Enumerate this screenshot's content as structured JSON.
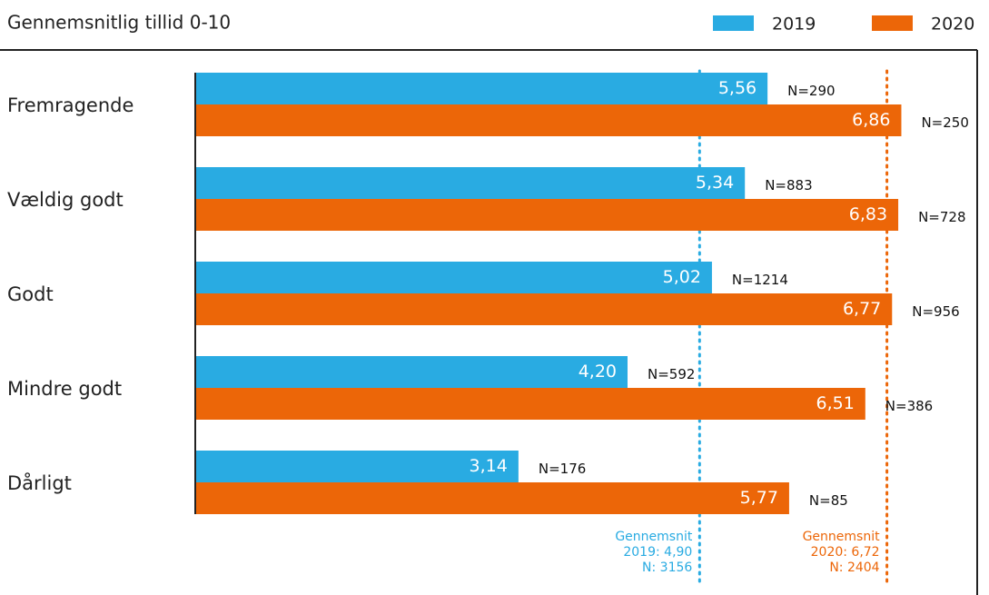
{
  "chart_data": {
    "type": "hbar",
    "title": "Gennemsnitlig tillid 0-10",
    "categories": [
      "Fremragende",
      "Vældig godt",
      "Godt",
      "Mindre godt",
      "Dårligt"
    ],
    "series": [
      {
        "name": "2019",
        "color": "#29abe2",
        "values": [
          5.56,
          5.34,
          5.02,
          4.2,
          3.14
        ],
        "value_labels": [
          "5,56",
          "5,34",
          "5,02",
          "4,20",
          "3,14"
        ],
        "n_labels": [
          "N=290",
          "N=883",
          "N=1214",
          "N=592",
          "N=176"
        ]
      },
      {
        "name": "2020",
        "color": "#ec6608",
        "values": [
          6.86,
          6.83,
          6.77,
          6.51,
          5.77
        ],
        "value_labels": [
          "6,86",
          "6,83",
          "6,77",
          "6,51",
          "5,77"
        ],
        "n_labels": [
          "N=250",
          "N=728",
          "N=956",
          "N=386",
          "N=85"
        ]
      }
    ],
    "xlim": [
      0,
      7.5
    ],
    "reference_lines": [
      {
        "value": 4.9,
        "color": "#29abe2",
        "lines": [
          "Gennemsnit",
          "2019: 4,90",
          "N: 3156"
        ]
      },
      {
        "value": 6.72,
        "color": "#ec6608",
        "lines": [
          "Gennemsnit",
          "2020: 6,72",
          "N: 2404"
        ]
      }
    ]
  }
}
